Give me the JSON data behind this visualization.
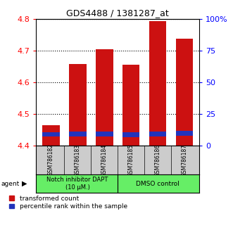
{
  "title": "GDS4488 / 1381287_at",
  "samples": [
    "GSM786182",
    "GSM786183",
    "GSM786184",
    "GSM786185",
    "GSM786186",
    "GSM786187"
  ],
  "red_values": [
    4.465,
    4.658,
    4.703,
    4.655,
    4.793,
    4.737
  ],
  "blue_bottom": [
    4.428,
    4.43,
    4.43,
    4.427,
    4.43,
    4.431
  ],
  "blue_top": [
    4.443,
    4.445,
    4.445,
    4.442,
    4.445,
    4.446
  ],
  "ylim_left": [
    4.4,
    4.8
  ],
  "ylim_right": [
    0,
    100
  ],
  "yticks_left": [
    4.4,
    4.5,
    4.6,
    4.7,
    4.8
  ],
  "yticks_right": [
    0,
    25,
    50,
    75,
    100
  ],
  "ytick_labels_right": [
    "0",
    "25",
    "50",
    "75",
    "100%"
  ],
  "red_color": "#cc1111",
  "blue_color": "#2233bb",
  "group1_label": "Notch inhibitor DAPT\n(10 μM.)",
  "group2_label": "DMSO control",
  "group_bg_color": "#66ee66",
  "sample_bg_color": "#cccccc",
  "legend_red": "transformed count",
  "legend_blue": "percentile rank within the sample",
  "bar_base": 4.4,
  "bar_width": 0.65
}
